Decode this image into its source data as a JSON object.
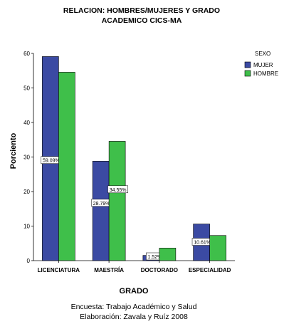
{
  "chart_data": {
    "type": "bar",
    "title_lines": [
      "RELACION: HOMBRES/MUJERES Y GRADO",
      "ACADEMICO  CICS-MA"
    ],
    "xlabel": "GRADO",
    "ylabel": "Porciento",
    "ylim": [
      0,
      60
    ],
    "yticks": [
      "0",
      "10",
      "20",
      "30",
      "40",
      "50",
      "60"
    ],
    "categories": [
      "LICENCIATURA",
      "MAESTRÍA",
      "DOCTORADO",
      "ESPECIALIDAD"
    ],
    "legend_title": "SEXO",
    "legend_placement": "right",
    "grid": false,
    "series": [
      {
        "name": "MUJER",
        "color": "#3b4aa3",
        "values": [
          59.09,
          28.79,
          1.52,
          10.61
        ],
        "data_labels": [
          "59.09%",
          "28.79%",
          "1.52%",
          "10.61%"
        ]
      },
      {
        "name": "HOMBRE",
        "color": "#3fbf4a",
        "values": [
          54.55,
          34.55,
          3.64,
          7.27
        ],
        "data_labels": [
          "",
          "34.55%",
          "",
          ""
        ]
      }
    ]
  },
  "footer": {
    "line1": "Encuesta: Trabajo Académico y Salud",
    "line2": "Elaboración: Zavala  y Ruíz 2008"
  }
}
